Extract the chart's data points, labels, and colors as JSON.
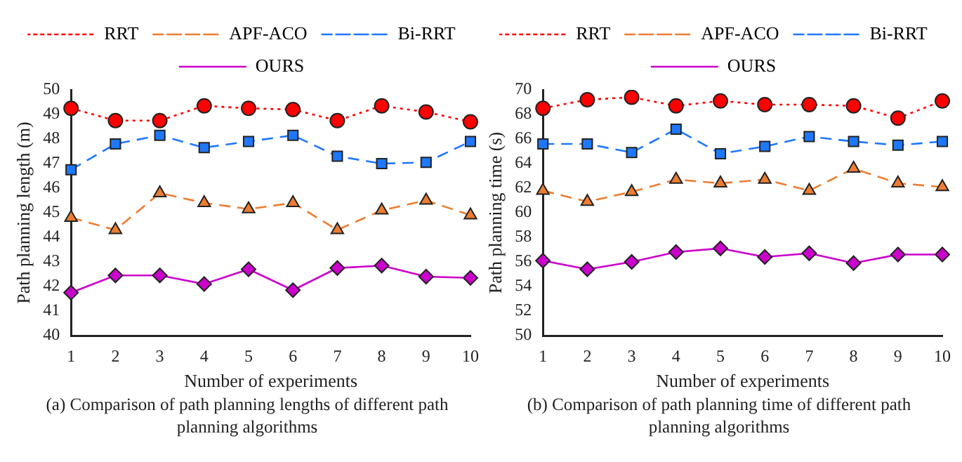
{
  "chart_data": [
    {
      "type": "line",
      "title": "(a) Comparison of path planning lengths of different path planning algorithms",
      "xlabel": "Number of experiments",
      "ylabel": "Path planning length (m)",
      "categories": [
        "1",
        "2",
        "3",
        "4",
        "5",
        "6",
        "7",
        "8",
        "9",
        "10"
      ],
      "ylim": [
        40,
        50
      ],
      "yticks": [
        40,
        41,
        42,
        43,
        44,
        45,
        46,
        47,
        48,
        49,
        50
      ],
      "grid": false,
      "legend": "top",
      "series": [
        {
          "name": "RRT",
          "color": "#ff0000",
          "line_style": "dotted",
          "marker": "circle",
          "values": [
            49.25,
            48.75,
            48.75,
            49.35,
            49.25,
            49.2,
            48.75,
            49.35,
            49.1,
            48.7
          ]
        },
        {
          "name": "APF-ACO",
          "color": "#ed7d31",
          "line_style": "dashed",
          "marker": "triangle",
          "values": [
            44.8,
            44.3,
            45.8,
            45.4,
            45.15,
            45.4,
            44.3,
            45.1,
            45.5,
            44.9
          ]
        },
        {
          "name": "Bi-RRT",
          "color": "#1e78ff",
          "line_style": "dashed",
          "marker": "square",
          "values": [
            46.75,
            47.8,
            48.15,
            47.65,
            47.9,
            48.15,
            47.3,
            47.0,
            47.05,
            47.9
          ]
        },
        {
          "name": "OURS",
          "color": "#cc00cc",
          "line_style": "solid",
          "marker": "diamond",
          "values": [
            41.75,
            42.45,
            42.45,
            42.1,
            42.7,
            41.85,
            42.75,
            42.85,
            42.4,
            42.35
          ]
        }
      ]
    },
    {
      "type": "line",
      "title": "(b) Comparison of path planning time of different path planning algorithms",
      "xlabel": "Number of experiments",
      "ylabel": "Path planning time (s)",
      "categories": [
        "1",
        "2",
        "3",
        "4",
        "5",
        "6",
        "7",
        "8",
        "9",
        "10"
      ],
      "ylim": [
        50,
        70
      ],
      "yticks": [
        50,
        52,
        54,
        56,
        58,
        60,
        62,
        64,
        66,
        68,
        70
      ],
      "grid": false,
      "legend": "top",
      "series": [
        {
          "name": "RRT",
          "color": "#ff0000",
          "line_style": "dotted",
          "marker": "circle",
          "values": [
            68.5,
            69.2,
            69.4,
            68.7,
            69.1,
            68.8,
            68.8,
            68.7,
            67.7,
            69.1
          ]
        },
        {
          "name": "APF-ACO",
          "color": "#ed7d31",
          "line_style": "dashed",
          "marker": "triangle",
          "values": [
            61.8,
            60.9,
            61.7,
            62.7,
            62.4,
            62.7,
            61.8,
            63.6,
            62.4,
            62.1
          ]
        },
        {
          "name": "Bi-RRT",
          "color": "#1e78ff",
          "line_style": "dashed",
          "marker": "square",
          "values": [
            65.6,
            65.6,
            64.9,
            66.8,
            64.8,
            65.4,
            66.2,
            65.8,
            65.5,
            65.8
          ]
        },
        {
          "name": "OURS",
          "color": "#cc00cc",
          "line_style": "solid",
          "marker": "diamond",
          "values": [
            56.1,
            55.4,
            56.0,
            56.8,
            57.1,
            56.4,
            56.7,
            55.9,
            56.6,
            56.6
          ]
        }
      ]
    }
  ]
}
